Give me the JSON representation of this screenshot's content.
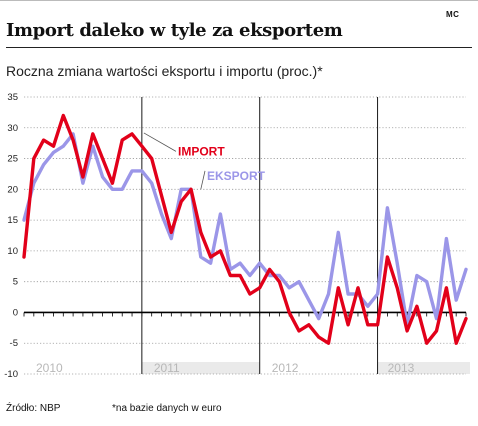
{
  "header": {
    "logo": "MC",
    "title": "Import daleko w tyle za eksportem",
    "subtitle": "Roczna zmiana wartości eksportu i importu (proc.)*"
  },
  "footer": {
    "source": "Źródło: NBP",
    "note": "*na bazie danych w euro"
  },
  "colors": {
    "import": "#e2001a",
    "eksport": "#9b96e8"
  },
  "chart_data": {
    "type": "line",
    "yticks": [
      35,
      30,
      25,
      20,
      15,
      10,
      5,
      0,
      -5,
      -10
    ],
    "ylim": [
      -10,
      35
    ],
    "years": [
      "2010",
      "2011",
      "2012",
      "2013"
    ],
    "months_total": 45,
    "grid": "dotted horizontal, vertical year separators",
    "legend": "inline labels",
    "series": [
      {
        "name": "IMPORT",
        "values": [
          9,
          25,
          28,
          27,
          32,
          28,
          22,
          29,
          25,
          21,
          28,
          29,
          27,
          25,
          19,
          13,
          18,
          20,
          13,
          9,
          10,
          6,
          6,
          3,
          4,
          7,
          5,
          0,
          -3,
          -2,
          -4,
          -5,
          4,
          -2,
          4,
          -2,
          -2,
          9,
          4,
          -3,
          1,
          -5,
          -3,
          4,
          -5,
          -1
        ]
      },
      {
        "name": "EKSPORT",
        "values": [
          15,
          21,
          24,
          26,
          27,
          29,
          21,
          27,
          22,
          20,
          20,
          23,
          23,
          21,
          16,
          12,
          20,
          20,
          9,
          8,
          16,
          7,
          8,
          6,
          8,
          6,
          6,
          4,
          5,
          2,
          -1,
          3,
          13,
          3,
          3,
          1,
          3,
          17,
          8,
          -2,
          6,
          5,
          -1,
          12,
          2,
          7
        ]
      }
    ]
  }
}
